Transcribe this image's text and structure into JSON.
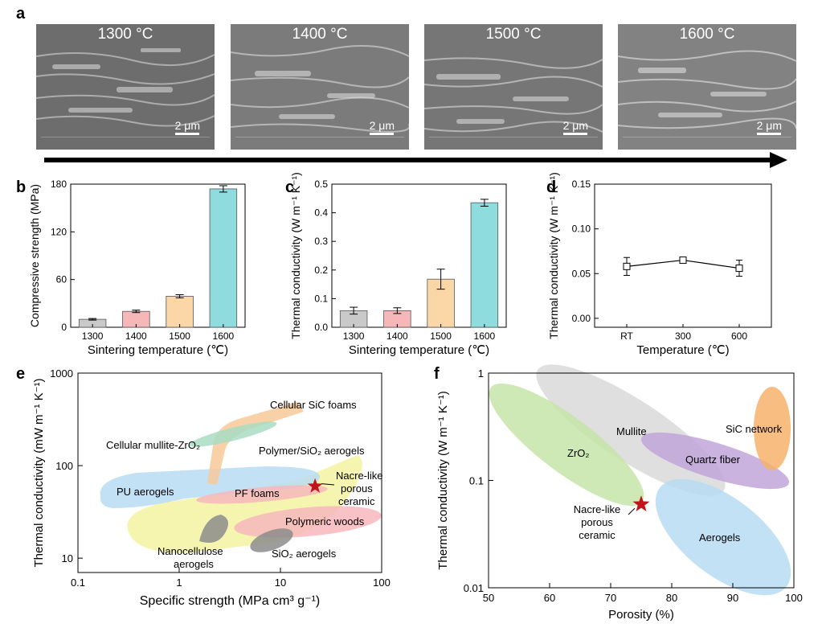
{
  "panel_labels": {
    "a": "a",
    "b": "b",
    "c": "c",
    "d": "d",
    "e": "e",
    "f": "f"
  },
  "sem_images": [
    {
      "temperature": "1300 °C",
      "scale_bar": "2 μm",
      "tone": "#6d6d6d"
    },
    {
      "temperature": "1400 °C",
      "scale_bar": "2 μm",
      "tone": "#7b7b7b"
    },
    {
      "temperature": "1500 °C",
      "scale_bar": "2 μm",
      "tone": "#767676"
    },
    {
      "temperature": "1600 °C",
      "scale_bar": "2 μm",
      "tone": "#828282"
    }
  ],
  "chart_data": [
    {
      "id": "b",
      "type": "bar",
      "categories": [
        "1300",
        "1400",
        "1500",
        "1600"
      ],
      "values": [
        10,
        20,
        39,
        174
      ],
      "errors": [
        1,
        1.5,
        2,
        4
      ],
      "colors": [
        "#c9c9c9",
        "#f6b7b9",
        "#fbd7a8",
        "#8fdcdf"
      ],
      "ylim": [
        0,
        180
      ],
      "yticks": [
        0,
        60,
        120,
        180
      ],
      "xlabel": "Sintering temperature (℃)",
      "ylabel": "Compressive strength (MPa)"
    },
    {
      "id": "c",
      "type": "bar",
      "categories": [
        "1300",
        "1400",
        "1500",
        "1600"
      ],
      "values": [
        0.058,
        0.058,
        0.168,
        0.435
      ],
      "errors": [
        0.012,
        0.01,
        0.035,
        0.012
      ],
      "colors": [
        "#c9c9c9",
        "#f6b7b9",
        "#fbd7a8",
        "#8fdcdf"
      ],
      "ylim": [
        0,
        0.5
      ],
      "yticks": [
        "0.0",
        "0.1",
        "0.2",
        "0.3",
        "0.4",
        "0.5"
      ],
      "xlabel": "Sintering temperature (℃)",
      "ylabel": "Thermal conductivity (W m⁻¹ K⁻¹)"
    },
    {
      "id": "d",
      "type": "line",
      "categories": [
        "RT",
        "300",
        "600"
      ],
      "values": [
        0.058,
        0.065,
        0.056
      ],
      "errors": [
        0.01,
        0.002,
        0.009
      ],
      "ylim": [
        -0.01,
        0.15
      ],
      "yticks": [
        "0.00",
        "0.05",
        "0.10",
        "0.15"
      ],
      "xlabel": "Temperature (℃)",
      "ylabel": "Thermal conductivity (W m⁻¹ K⁻¹)"
    },
    {
      "id": "e",
      "type": "scatter",
      "xscale": "log",
      "yscale": "log",
      "xlim": [
        0.1,
        100
      ],
      "ylim": [
        7,
        1000
      ],
      "xticks": [
        "0.1",
        "1",
        "10",
        "100"
      ],
      "yticks": [
        "10",
        "100",
        "1000"
      ],
      "xlabel": "Specific strength (MPa cm³ g⁻¹)",
      "ylabel": "Thermal conductivity (mW m⁻¹ K⁻¹)",
      "regions": [
        {
          "label": "Cellular SiC foams",
          "color": "#f8c99a"
        },
        {
          "label": "Cellular mullite-ZrO₂",
          "color": "#a8dcc4"
        },
        {
          "label": "Polymer/SiO₂ aerogels",
          "color": "#f4f3a2"
        },
        {
          "label": "PU aerogels",
          "color": "#b7dcf2"
        },
        {
          "label": "PF foams",
          "color": "#f7b7bd"
        },
        {
          "label": "Polymeric woods",
          "color": "#f7b7bd"
        },
        {
          "label": "Nanocellulose aerogels",
          "color": "#8c8c8c"
        },
        {
          "label": "SiO₂ aerogels",
          "color": "#8c8c8c"
        }
      ],
      "highlight": {
        "label": "Nacre-like porous ceramic",
        "x": 22,
        "y": 60,
        "color": "#c0141a"
      }
    },
    {
      "id": "f",
      "type": "scatter",
      "yscale": "log",
      "xlim": [
        50,
        100
      ],
      "ylim": [
        0.01,
        1
      ],
      "xticks": [
        "50",
        "60",
        "70",
        "80",
        "90",
        "100"
      ],
      "yticks": [
        "0.01",
        "0.1",
        "1"
      ],
      "xlabel": "Porosity (%)",
      "ylabel": "Thermal conductivity (W m⁻¹ K⁻¹)",
      "regions": [
        {
          "label": "Mullite",
          "color": "#d9d9d9"
        },
        {
          "label": "ZrO₂",
          "color": "#c6e5a8"
        },
        {
          "label": "Quartz fiber",
          "color": "#c2a6da"
        },
        {
          "label": "SiC network",
          "color": "#f7b26b"
        },
        {
          "label": "Aerogels",
          "color": "#b7dcf2"
        }
      ],
      "highlight": {
        "label": "Nacre-like porous ceramic",
        "x": 75,
        "y": 0.06,
        "color": "#c0141a"
      }
    }
  ]
}
